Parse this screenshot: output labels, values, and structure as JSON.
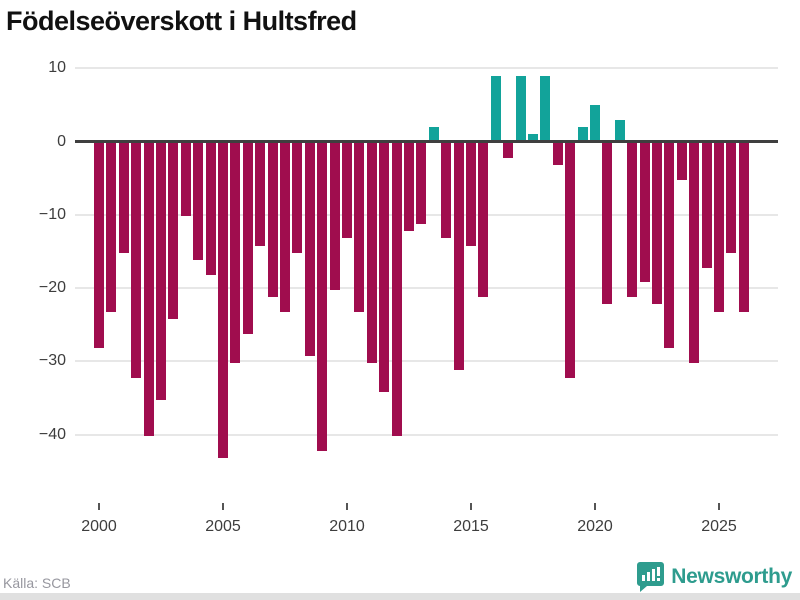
{
  "title": "Födelseöverskott i Hultsfred",
  "footer": {
    "source": "Källa: SCB"
  },
  "brand": {
    "name": "Newsworthy",
    "icon": "bar-chart-speech-bubble-icon"
  },
  "colors": {
    "negative_bar": "#a00d4e",
    "positive_bar": "#12a39a",
    "brand_teal": "#2e9c8e",
    "zero_line": "#3f3f3f",
    "gridline": "#e7e7e7",
    "axis_text": "#3d3d3d",
    "source_text": "#97979f"
  },
  "chart_data": {
    "type": "bar",
    "title": "Födelseöverskott i Hultsfred",
    "xlabel": "",
    "ylabel": "",
    "unit": "persons per half-year",
    "ylim": [
      -45,
      11
    ],
    "grid": "horizontal",
    "legend": "none",
    "x": [
      "2000 H1",
      "2000 H2",
      "2001 H1",
      "2001 H2",
      "2002 H1",
      "2002 H2",
      "2003 H1",
      "2003 H2",
      "2004 H1",
      "2004 H2",
      "2005 H1",
      "2005 H2",
      "2006 H1",
      "2006 H2",
      "2007 H1",
      "2007 H2",
      "2008 H1",
      "2008 H2",
      "2009 H1",
      "2009 H2",
      "2010 H1",
      "2010 H2",
      "2011 H1",
      "2011 H2",
      "2012 H1",
      "2012 H2",
      "2013 H1",
      "2013 H2",
      "2014 H1",
      "2014 H2",
      "2015 H1",
      "2015 H2",
      "2016 H1",
      "2016 H2",
      "2017 H1",
      "2017 H2",
      "2018 H1",
      "2018 H2",
      "2019 H1",
      "2019 H2",
      "2020 H1",
      "2020 H2",
      "2021 H1",
      "2021 H2",
      "2022 H1",
      "2022 H2",
      "2023 H1",
      "2023 H2",
      "2024 H1",
      "2024 H2",
      "2025 H1",
      "2025 H2",
      "2026 H1"
    ],
    "values": [
      -28,
      -23,
      -15,
      -32,
      -40,
      -35,
      -24,
      -10,
      -16,
      -18,
      -43,
      -30,
      -26,
      -14,
      -21,
      -23,
      -15,
      -29,
      -42,
      -20,
      -13,
      -23,
      -30,
      -34,
      -40,
      -12,
      -11,
      2,
      -13,
      -31,
      -14,
      -21,
      9,
      -2,
      9,
      1,
      9,
      -3,
      -32,
      2,
      5,
      -22,
      3,
      -21,
      -19,
      -22,
      -28,
      -5,
      -30,
      -17,
      -23,
      -15,
      -23
    ],
    "y_ticks": [
      {
        "v": 10,
        "label": "10"
      },
      {
        "v": 0,
        "label": "0"
      },
      {
        "v": -10,
        "label": "−10"
      },
      {
        "v": -20,
        "label": "−20"
      },
      {
        "v": -30,
        "label": "−30"
      },
      {
        "v": -40,
        "label": "−40"
      }
    ],
    "x_ticks": [
      {
        "index": 0,
        "label": "2000"
      },
      {
        "index": 10,
        "label": "2005"
      },
      {
        "index": 20,
        "label": "2010"
      },
      {
        "index": 30,
        "label": "2015"
      },
      {
        "index": 40,
        "label": "2020"
      },
      {
        "index": 50,
        "label": "2025"
      }
    ]
  }
}
